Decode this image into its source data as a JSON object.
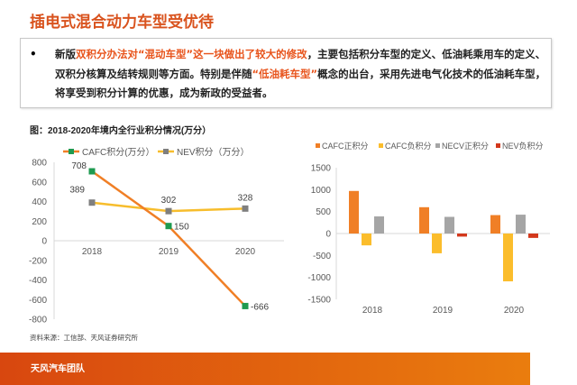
{
  "title": "插电式混合动力车型受优待",
  "bullet": {
    "p1": "新版",
    "h1": "双积分办法对“混动车型”这一块做出了较大的修改",
    "p2": "，主要包括积分车型的定义、低油耗乘用车的定义、双积分核算及结转规则等方面。特别是伴随",
    "h2": "“低油耗车型”",
    "p3": "概念的出台，采用先进电气化技术的低油耗车型，将享受到积分计算的优惠，成为新政的受益者。"
  },
  "footer": "天风汽车团队",
  "chart_data": [
    {
      "type": "line",
      "title": "图：2018-2020年境内全行业积分情况(万分）",
      "source": "资料来源：工信部、天风证券研究所",
      "categories": [
        "2018",
        "2019",
        "2020"
      ],
      "ylim": [
        -800,
        800
      ],
      "yticks": [
        800,
        600,
        400,
        200,
        0,
        -200,
        -400,
        -600,
        -800
      ],
      "legend": "top",
      "series": [
        {
          "name": "CAFC积分(万分）",
          "values": [
            708,
            150,
            -666
          ],
          "color": "#f07f26",
          "marker": "#1e9a50"
        },
        {
          "name": "NEV积分（万分）",
          "values": [
            389,
            302,
            328
          ],
          "color": "#f7bd2c",
          "marker": "#7f7f7f"
        }
      ]
    },
    {
      "type": "bar",
      "categories": [
        "2018",
        "2019",
        "2020"
      ],
      "ylim": [
        -1500,
        1500
      ],
      "yticks": [
        1500,
        1000,
        500,
        0,
        -500,
        -1000,
        -1500
      ],
      "legend": "top",
      "series": [
        {
          "name": "CAFC正积分",
          "values": [
            970,
            600,
            420
          ],
          "color": "#f07f26"
        },
        {
          "name": "CAFC负积分",
          "values": [
            -270,
            -450,
            -1090
          ],
          "color": "#fbbd2c"
        },
        {
          "name": "NECV正积分",
          "values": [
            390,
            380,
            430
          ],
          "color": "#a5a5a5"
        },
        {
          "name": "NEV负积分",
          "values": [
            0,
            -70,
            -100
          ],
          "color": "#d3381c"
        }
      ]
    }
  ]
}
